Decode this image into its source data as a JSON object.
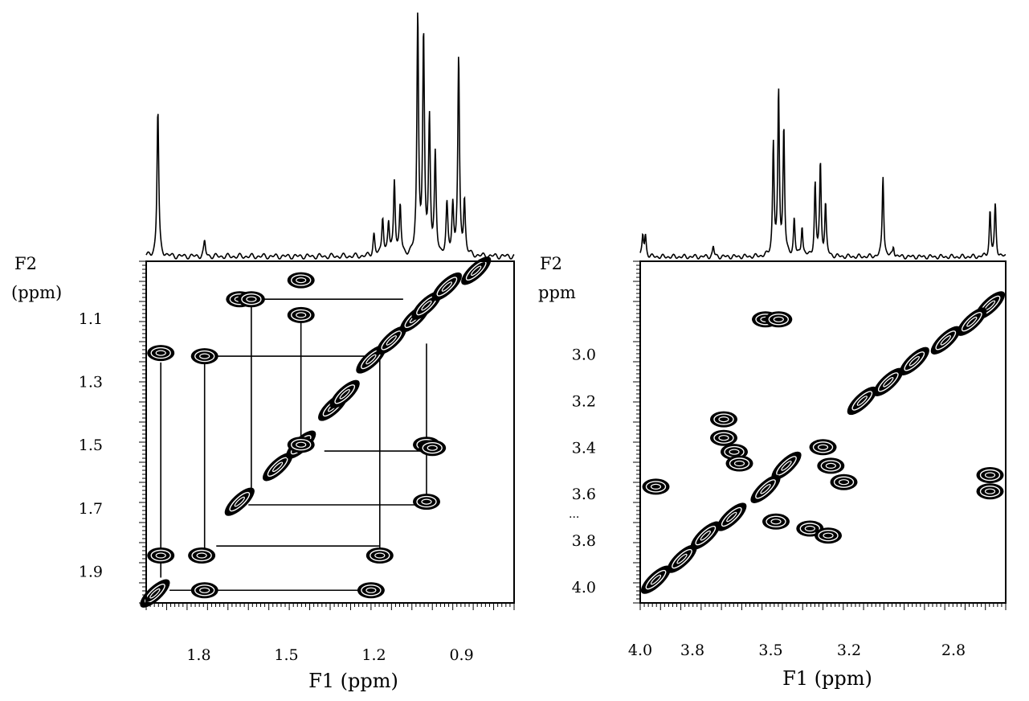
{
  "chart_data": [
    {
      "type": "heatmap",
      "subtype": "2D NMR COSY contour plot with 1D projection",
      "title": "",
      "xlabel": "F1 (ppm)",
      "ylabel": "F2 (ppm)",
      "ylabel_lines": [
        "F2",
        "(ppm)"
      ],
      "xlim": [
        1.98,
        0.72
      ],
      "ylim": [
        0.92,
        2.0
      ],
      "x_ticks": [
        1.8,
        1.5,
        1.2,
        0.9
      ],
      "x_tick_labels": [
        "1.8",
        "1.5",
        "1.2",
        "0.9"
      ],
      "y_ticks": [
        1.1,
        1.3,
        1.5,
        1.7,
        1.9
      ],
      "y_tick_labels": [
        "1.1",
        "1.3",
        "1.5",
        "1.7",
        "1.9"
      ],
      "grid": false,
      "projection_peaks": [
        {
          "ppm": 1.94,
          "height": 0.6
        },
        {
          "ppm": 1.78,
          "height": 0.06
        },
        {
          "ppm": 1.2,
          "height": 0.09
        },
        {
          "ppm": 1.17,
          "height": 0.16
        },
        {
          "ppm": 1.15,
          "height": 0.13
        },
        {
          "ppm": 1.13,
          "height": 0.31
        },
        {
          "ppm": 1.11,
          "height": 0.2
        },
        {
          "ppm": 1.05,
          "height": 0.98
        },
        {
          "ppm": 1.03,
          "height": 0.88
        },
        {
          "ppm": 1.01,
          "height": 0.55
        },
        {
          "ppm": 0.99,
          "height": 0.4
        },
        {
          "ppm": 0.95,
          "height": 0.2
        },
        {
          "ppm": 0.93,
          "height": 0.2
        },
        {
          "ppm": 0.91,
          "height": 0.8
        },
        {
          "ppm": 0.89,
          "height": 0.22
        }
      ],
      "cross_peaks": [
        {
          "x": 1.93,
          "y": 1.21
        },
        {
          "x": 1.93,
          "y": 1.85
        },
        {
          "x": 1.78,
          "y": 1.22
        },
        {
          "x": 1.79,
          "y": 1.85
        },
        {
          "x": 1.78,
          "y": 1.96
        },
        {
          "x": 1.66,
          "y": 1.04
        },
        {
          "x": 1.62,
          "y": 1.04
        },
        {
          "x": 1.45,
          "y": 0.98
        },
        {
          "x": 1.45,
          "y": 1.09
        },
        {
          "x": 1.45,
          "y": 1.5
        },
        {
          "x": 1.21,
          "y": 1.96
        },
        {
          "x": 1.18,
          "y": 1.85
        },
        {
          "x": 1.02,
          "y": 1.5
        },
        {
          "x": 1.02,
          "y": 1.68
        },
        {
          "x": 1.0,
          "y": 1.51
        }
      ],
      "diagonal_peaks": [
        {
          "x": 1.95,
          "y": 1.97
        },
        {
          "x": 1.66,
          "y": 1.68
        },
        {
          "x": 1.53,
          "y": 1.57
        },
        {
          "x": 1.45,
          "y": 1.5
        },
        {
          "x": 1.34,
          "y": 1.38
        },
        {
          "x": 1.3,
          "y": 1.34
        },
        {
          "x": 1.21,
          "y": 1.23
        },
        {
          "x": 1.14,
          "y": 1.17
        },
        {
          "x": 1.06,
          "y": 1.1
        },
        {
          "x": 1.02,
          "y": 1.06
        },
        {
          "x": 0.95,
          "y": 1.0
        },
        {
          "x": 0.85,
          "y": 0.95
        }
      ],
      "correlation_lines": [
        {
          "x1": 1.93,
          "y1": 1.24,
          "x2": 1.93,
          "y2": 1.92
        },
        {
          "x1": 1.9,
          "y1": 1.96,
          "x2": 1.21,
          "y2": 1.96
        },
        {
          "x1": 1.78,
          "y1": 1.24,
          "x2": 1.78,
          "y2": 1.83
        },
        {
          "x1": 1.76,
          "y1": 1.22,
          "x2": 1.17,
          "y2": 1.22
        },
        {
          "x1": 1.62,
          "y1": 1.06,
          "x2": 1.62,
          "y2": 1.66
        },
        {
          "x1": 1.58,
          "y1": 1.04,
          "x2": 1.1,
          "y2": 1.04
        },
        {
          "x1": 1.45,
          "y1": 1.11,
          "x2": 1.45,
          "y2": 1.48
        },
        {
          "x1": 1.37,
          "y1": 1.52,
          "x2": 1.02,
          "y2": 1.52
        },
        {
          "x1": 1.63,
          "y1": 1.69,
          "x2": 1.02,
          "y2": 1.69
        },
        {
          "x1": 1.74,
          "y1": 1.82,
          "x2": 1.18,
          "y2": 1.82
        },
        {
          "x1": 1.18,
          "y1": 1.2,
          "x2": 1.18,
          "y2": 1.84
        },
        {
          "x1": 1.02,
          "y1": 1.18,
          "x2": 1.02,
          "y2": 1.67
        }
      ]
    },
    {
      "type": "heatmap",
      "subtype": "2D NMR COSY contour plot with 1D projection",
      "title": "",
      "xlabel": "F1 (ppm)",
      "ylabel": "F2 ppm",
      "ylabel_lines": [
        "F2",
        "ppm"
      ],
      "extra_label": "...",
      "xlim": [
        4.0,
        2.6
      ],
      "ylim": [
        2.6,
        4.07
      ],
      "x_ticks": [
        4.0,
        3.8,
        3.5,
        3.2,
        2.8
      ],
      "x_tick_labels": [
        "4.0",
        "3.8",
        "3.5",
        "3.2",
        "2.8"
      ],
      "y_ticks": [
        3.0,
        3.2,
        3.4,
        3.6,
        3.8,
        4.0
      ],
      "y_tick_labels": [
        "3.0",
        "3.2",
        "3.4",
        "3.6",
        "3.8",
        "4.0"
      ],
      "grid": false,
      "projection_peaks": [
        {
          "ppm": 3.99,
          "height": 0.1
        },
        {
          "ppm": 3.98,
          "height": 0.1
        },
        {
          "ppm": 3.72,
          "height": 0.05
        },
        {
          "ppm": 3.49,
          "height": 0.55
        },
        {
          "ppm": 3.47,
          "height": 0.8
        },
        {
          "ppm": 3.45,
          "height": 0.62
        },
        {
          "ppm": 3.41,
          "height": 0.18
        },
        {
          "ppm": 3.38,
          "height": 0.15
        },
        {
          "ppm": 3.33,
          "height": 0.35
        },
        {
          "ppm": 3.31,
          "height": 0.45
        },
        {
          "ppm": 3.29,
          "height": 0.25
        },
        {
          "ppm": 3.07,
          "height": 0.4
        },
        {
          "ppm": 3.03,
          "height": 0.05
        },
        {
          "ppm": 2.66,
          "height": 0.22
        },
        {
          "ppm": 2.64,
          "height": 0.25
        }
      ],
      "cross_peaks": [
        {
          "x": 3.52,
          "y": 2.85
        },
        {
          "x": 3.47,
          "y": 2.85
        },
        {
          "x": 3.68,
          "y": 3.28
        },
        {
          "x": 3.68,
          "y": 3.36
        },
        {
          "x": 3.64,
          "y": 3.42
        },
        {
          "x": 3.62,
          "y": 3.47
        },
        {
          "x": 3.3,
          "y": 3.4
        },
        {
          "x": 3.27,
          "y": 3.48
        },
        {
          "x": 3.35,
          "y": 3.75
        },
        {
          "x": 3.28,
          "y": 3.78
        },
        {
          "x": 3.48,
          "y": 3.72
        },
        {
          "x": 3.94,
          "y": 3.57
        },
        {
          "x": 2.66,
          "y": 3.52
        },
        {
          "x": 2.66,
          "y": 3.59
        },
        {
          "x": 3.22,
          "y": 3.55
        }
      ],
      "diagonal_peaks": [
        {
          "x": 2.66,
          "y": 2.79
        },
        {
          "x": 2.73,
          "y": 2.86
        },
        {
          "x": 2.83,
          "y": 2.94
        },
        {
          "x": 2.95,
          "y": 3.03
        },
        {
          "x": 3.05,
          "y": 3.12
        },
        {
          "x": 3.15,
          "y": 3.2
        },
        {
          "x": 3.44,
          "y": 3.48
        },
        {
          "x": 3.52,
          "y": 3.58
        },
        {
          "x": 3.65,
          "y": 3.7
        },
        {
          "x": 3.75,
          "y": 3.78
        },
        {
          "x": 3.84,
          "y": 3.88
        },
        {
          "x": 3.94,
          "y": 3.97
        }
      ],
      "correlation_lines": []
    }
  ]
}
